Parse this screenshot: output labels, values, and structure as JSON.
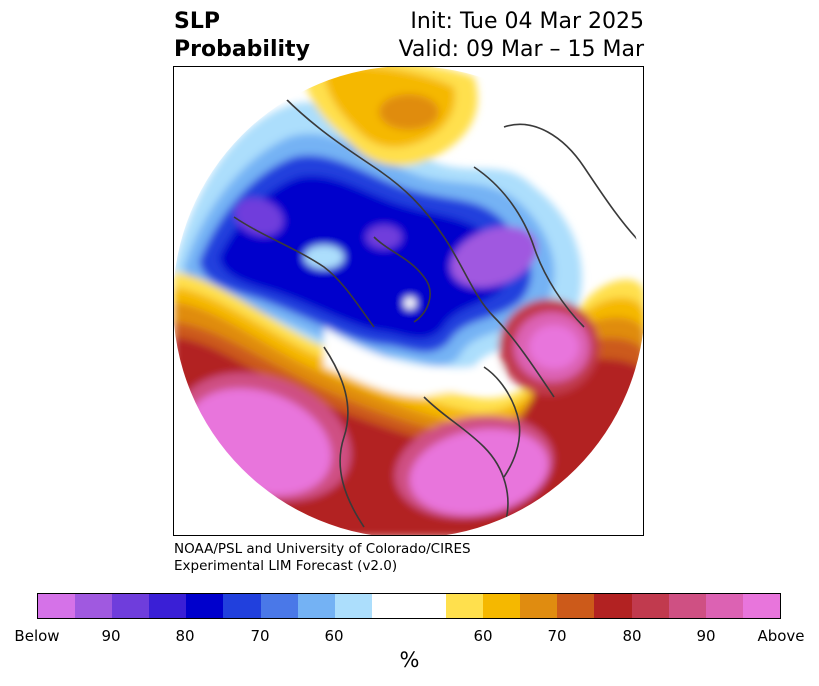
{
  "title": {
    "left_line1": "SLP",
    "left_line2": "Probability",
    "right_line1": "Init: Tue 04 Mar 2025",
    "right_line2": "Valid: 09 Mar – 15 Mar"
  },
  "credit": {
    "line1": "NOAA/PSL and University of Colorado/CIRES",
    "line2": "Experimental LIM Forecast (v2.0)"
  },
  "colorbar": {
    "colors": [
      "#d572e8",
      "#a059e0",
      "#6f3ddc",
      "#3a1fd6",
      "#0000cc",
      "#2140dd",
      "#4a78e8",
      "#74b2f4",
      "#acdefc",
      "#ffffff",
      "#ffffff",
      "#ffe04d",
      "#f5b800",
      "#e08c10",
      "#cc5a1a",
      "#b22222",
      "#c13a4e",
      "#cf5083",
      "#dc62b3",
      "#e875dc"
    ],
    "tick_labels": [
      "Below",
      "90",
      "80",
      "70",
      "60",
      "60",
      "70",
      "80",
      "90",
      "Above"
    ],
    "unit": "%"
  },
  "map": {
    "projection": "north-polar-stereographic",
    "variable": "sea level pressure tercile probability",
    "colors": {
      "below_strong": "#0000cc",
      "below_mid": "#2140dd",
      "below_light": "#74b2f4",
      "below_faint": "#acdefc",
      "below_max": "#a059e0",
      "above_faint": "#ffe04d",
      "above_light": "#f5b800",
      "above_mid": "#e08c10",
      "above_strong": "#b22222",
      "above_max": "#e875dc",
      "coast": "#3a3a3a"
    }
  }
}
